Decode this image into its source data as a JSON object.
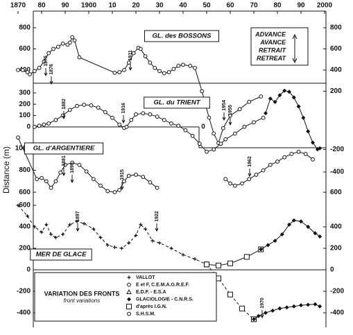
{
  "chart_data": [
    {
      "type": "line",
      "title": "GL. des BOSSONS",
      "ylabel": "Distance  (m)",
      "xlim": [
        1870,
        2000
      ],
      "xticks": [
        1870,
        {
          "value": 1880,
          "label": "80"
        },
        {
          "value": 1890,
          "label": "90"
        },
        1900,
        {
          "value": 1910,
          "label": "10"
        },
        {
          "value": 1920,
          "label": "20"
        },
        {
          "value": 1930,
          "label": "30"
        },
        {
          "value": 1940,
          "label": "40"
        },
        {
          "value": 1950,
          "label": "50"
        },
        {
          "value": 1960,
          "label": "60"
        },
        {
          "value": 1970,
          "label": "70"
        },
        {
          "value": 1980,
          "label": "80"
        },
        {
          "value": 1990,
          "label": "90"
        },
        2000
      ],
      "ylim": [
        -300,
        800
      ],
      "yticks": [
        800,
        600,
        400
      ],
      "y2lim": [
        -300,
        800
      ],
      "y2ticks": [
        800,
        600,
        400,
        200
      ],
      "key": [
        "ADVANCE",
        "AVANCE",
        "RETRAIT",
        "RETREAT"
      ],
      "annotations": [
        "1875",
        "1876",
        "1911"
      ],
      "series": [
        {
          "color": "#111111",
          "marker": "circle",
          "dash": false,
          "x": [
            1870,
            1872,
            1874,
            1875,
            1877,
            1879,
            1881,
            1883,
            1885,
            1887,
            1889,
            1891,
            1892,
            1893,
            1894,
            1896,
            1911,
            1913,
            1915,
            1917,
            1919,
            1921,
            1922,
            1924,
            1926,
            1928,
            1930,
            1932,
            1934,
            1936,
            1938,
            1940,
            1943,
            1945,
            1948,
            1951,
            1953,
            1955,
            1957,
            1960,
            1964,
            1968,
            1973
          ],
          "values": [
            400,
            400,
            380,
            360,
            390,
            420,
            480,
            560,
            600,
            620,
            650,
            640,
            660,
            710,
            680,
            520,
            375,
            380,
            400,
            470,
            560,
            610,
            600,
            530,
            470,
            420,
            390,
            370,
            380,
            410,
            440,
            450,
            440,
            420,
            200,
            -50,
            -200,
            -290,
            -150,
            -30,
            30,
            100,
            150
          ]
        }
      ]
    },
    {
      "type": "line",
      "title": "GL. du TRIENT",
      "xlim": [
        1870,
        2000
      ],
      "ylim": [
        -400,
        400
      ],
      "yticks": [
        300,
        200,
        100,
        0
      ],
      "y2lim": [
        -400,
        400
      ],
      "y2ticks": [
        -200,
        -400
      ],
      "annotations": [
        "1882",
        "1916",
        "1954",
        "1955",
        "0"
      ],
      "series": [
        {
          "color": "#111111",
          "marker": "circle",
          "dash": false,
          "x": [
            1877,
            1879,
            1881,
            1883,
            1886,
            1889,
            1892,
            1895,
            1898,
            1901,
            1904,
            1907,
            1910,
            1913,
            1915,
            1916,
            1918,
            1920,
            1923,
            1926,
            1929,
            1932,
            1935,
            1938,
            1941,
            1944,
            1947,
            1950,
            1953,
            1956,
            1958,
            1962,
            1966,
            1970,
            1974
          ],
          "values": [
            0,
            10,
            20,
            30,
            60,
            100,
            150,
            185,
            195,
            190,
            170,
            130,
            80,
            20,
            -10,
            0,
            60,
            110,
            120,
            110,
            90,
            60,
            30,
            10,
            -30,
            -80,
            -150,
            -220,
            -200,
            -150,
            -110,
            -60,
            0,
            40,
            80
          ]
        },
        {
          "color": "#111111",
          "marker": "diamond",
          "dash": false,
          "x": [
            1975,
            1977,
            1979,
            1981,
            1983,
            1985,
            1987,
            1989,
            1991,
            1993,
            1995,
            1997,
            1998
          ],
          "values": [
            120,
            250,
            220,
            280,
            320,
            310,
            260,
            180,
            80,
            -40,
            -140,
            -200,
            -190
          ]
        }
      ]
    },
    {
      "type": "line",
      "title": "GL. d'ARGENTIERE",
      "xlim": [
        1870,
        2000
      ],
      "ylim": [
        550,
        1100
      ],
      "yticks": [
        1000,
        800,
        600
      ],
      "y2lim": [
        550,
        1100
      ],
      "y2ticks": [
        600
      ],
      "annotations": [
        "1881",
        "1895",
        "1915",
        "1962"
      ],
      "series": [
        {
          "color": "#111111",
          "marker": "circle",
          "dash": false,
          "x": [
            1870,
            1878,
            1880,
            1882,
            1884,
            1886,
            1888,
            1890,
            1893,
            1896,
            1899,
            1902,
            1905,
            1908,
            1911,
            1913,
            1915,
            1917,
            1920,
            1923,
            1926,
            1929
          ],
          "values": [
            1100,
            720,
            730,
            700,
            640,
            700,
            780,
            850,
            870,
            850,
            790,
            720,
            660,
            610,
            600,
            620,
            700,
            750,
            760,
            740,
            690,
            640
          ]
        },
        {
          "color": "#111111",
          "marker": "circle",
          "dash": false,
          "x": [
            1958,
            1960,
            1962,
            1965,
            1968,
            1971,
            1974,
            1977,
            1980,
            1983,
            1986,
            1989,
            1992,
            1995
          ],
          "values": [
            720,
            680,
            660,
            680,
            720,
            760,
            800,
            850,
            880,
            920,
            950,
            970,
            950,
            900
          ]
        }
      ]
    },
    {
      "type": "line",
      "title": "MER DE GLACE",
      "xlim": [
        1870,
        2000
      ],
      "ylim": [
        -450,
        650
      ],
      "yticks": [
        600,
        400,
        200,
        0,
        -200,
        -400
      ],
      "y2lim": [
        -450,
        650
      ],
      "y2ticks": [
        400,
        200,
        0,
        -200,
        -400
      ],
      "annotations": [
        "1897",
        "1922",
        "1970"
      ],
      "legend_title": "VARIATION DES FRONTS",
      "legend_subtitle": "front variations",
      "legend_items": [
        {
          "label": "VALLOT",
          "marker": "plus"
        },
        {
          "label": "E et F, C.E.M.A.G.R.E.F.",
          "marker": "circle"
        },
        {
          "label": "E.D.F. - E.S.A",
          "marker": "triangle"
        },
        {
          "label": "GLACIOLOGIE - C.N.R.S.",
          "marker": "diamond"
        },
        {
          "label": "d'après I.G.N.",
          "marker": "square"
        },
        {
          "label": "S.H.S.M.",
          "marker": "circle"
        }
      ],
      "series": [
        {
          "color": "#111111",
          "marker": "plus",
          "dash": true,
          "x": [
            1870,
            1874,
            1877,
            1880,
            1882,
            1884,
            1886,
            1889,
            1892,
            1895,
            1898,
            1902,
            1905,
            1908,
            1911,
            1914,
            1917,
            1920,
            1922,
            1924,
            1927,
            1930,
            1935,
            1940,
            1945,
            1950
          ],
          "values": [
            600,
            500,
            400,
            350,
            420,
            330,
            300,
            330,
            420,
            450,
            430,
            380,
            300,
            230,
            210,
            200,
            250,
            320,
            420,
            380,
            270,
            250,
            200,
            140,
            100,
            50
          ]
        },
        {
          "color": "#111111",
          "marker": "square",
          "dash": false,
          "x": [
            1950,
            1955,
            1960,
            1967,
            1973
          ],
          "values": [
            50,
            40,
            60,
            120,
            190
          ]
        },
        {
          "color": "#111111",
          "marker": "diamond",
          "dash": false,
          "x": [
            1973,
            1976,
            1979,
            1982,
            1985,
            1987,
            1990,
            1993,
            1996,
            1998
          ],
          "values": [
            190,
            230,
            270,
            330,
            420,
            460,
            450,
            400,
            340,
            310
          ]
        },
        {
          "color": "#111111",
          "marker": "square",
          "dash": true,
          "x": [
            1950,
            1955,
            1960,
            1965,
            1970
          ],
          "values": [
            50,
            -80,
            -230,
            -360,
            -460
          ]
        },
        {
          "color": "#111111",
          "marker": "diamond",
          "dash": false,
          "x": [
            1970,
            1972,
            1975,
            1978,
            1981,
            1984,
            1987,
            1990,
            1993,
            1996,
            1998
          ],
          "values": [
            -460,
            -430,
            -400,
            -380,
            -360,
            -350,
            -340,
            -330,
            -325,
            -320,
            -340
          ]
        }
      ]
    }
  ]
}
